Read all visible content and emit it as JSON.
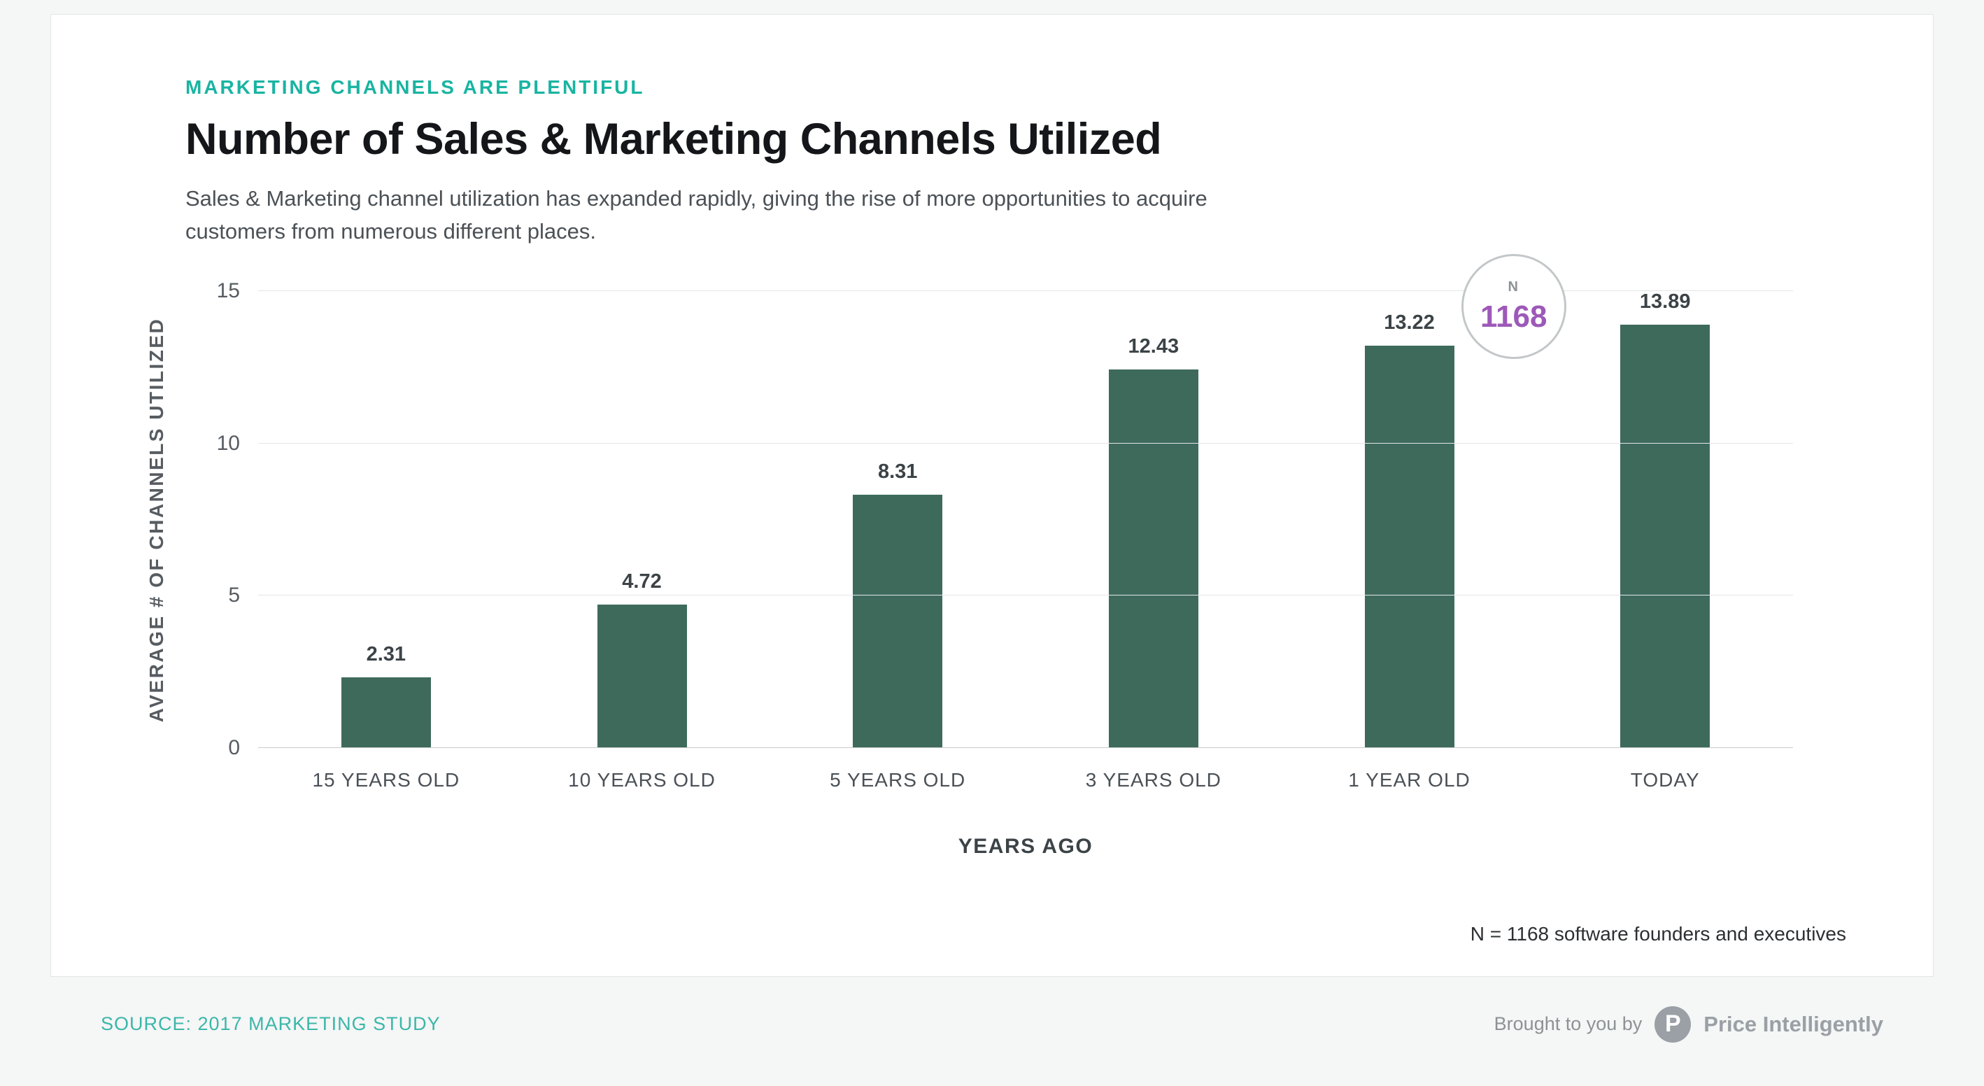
{
  "page": {
    "eyebrow": "MARKETING CHANNELS ARE PLENTIFUL",
    "title": "Number of Sales & Marketing Channels Utilized",
    "subtitle": "Sales & Marketing channel utilization has expanded rapidly, giving the rise of more opportunities to acquire customers from numerous different places.",
    "footnote": "N = 1168 software founders and executives"
  },
  "badge": {
    "label": "N",
    "value": "1168"
  },
  "footer": {
    "source": "SOURCE: 2017 MARKETING STUDY",
    "brought_by": "Brought to you by",
    "brand_initial": "P",
    "brand": "Price Intelligently"
  },
  "colors": {
    "accent_teal": "#19b4a2",
    "bar_green": "#3e6a5c",
    "badge_purple": "#9d59b8"
  },
  "chart_data": {
    "type": "bar",
    "title": "Number of Sales & Marketing Channels Utilized",
    "categories": [
      "15 YEARS OLD",
      "10 YEARS OLD",
      "5 YEARS OLD",
      "3 YEARS OLD",
      "1 YEAR OLD",
      "TODAY"
    ],
    "values": [
      2.31,
      4.72,
      8.31,
      12.43,
      13.22,
      13.89
    ],
    "value_labels": [
      "2.31",
      "4.72",
      "8.31",
      "12.43",
      "13.22",
      "13.89"
    ],
    "xlabel": "YEARS AGO",
    "ylabel": "AVERAGE # OF CHANNELS  UTILIZED",
    "ylim": [
      0,
      15
    ],
    "yticks": [
      0,
      5,
      10,
      15
    ],
    "grid": true,
    "legend": false,
    "annotation": "N = 1168",
    "bar_color": "#3e6a5c"
  }
}
